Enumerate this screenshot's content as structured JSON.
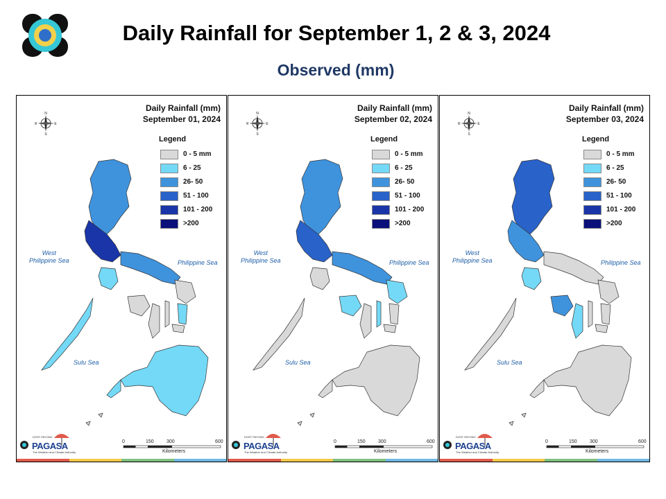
{
  "header": {
    "title": "Daily Rainfall for September 1, 2  & 3, 2024",
    "subtitle": "Observed (mm)"
  },
  "legend": {
    "title": "Legend",
    "classes": [
      {
        "label": "0 - 5 mm",
        "color": "#d9d9d9"
      },
      {
        "label": "6 - 25",
        "color": "#74d9f7"
      },
      {
        "label": "26- 50",
        "color": "#3f93dd"
      },
      {
        "label": "51 - 100",
        "color": "#2962c9"
      },
      {
        "label": "101 - 200",
        "color": "#1a35a8"
      },
      {
        "label": ">200",
        "color": "#0b0f7a"
      }
    ]
  },
  "panels": [
    {
      "title_line1": "Daily Rainfall (mm)",
      "title_line2": "September 01, 2024",
      "palette": [
        1,
        2,
        3,
        4,
        5
      ]
    },
    {
      "title_line1": "Daily Rainfall (mm)",
      "title_line2": "September 02, 2024",
      "palette": [
        1,
        2,
        3,
        4,
        5
      ]
    },
    {
      "title_line1": "Daily Rainfall (mm)",
      "title_line2": "September 03, 2024",
      "palette": [
        0,
        1,
        2,
        3
      ]
    }
  ],
  "seas": {
    "west": "West\nPhilippine Sea",
    "east": "Philippine Sea",
    "sulu": "Sulu Sea"
  },
  "compass": {
    "n": "N",
    "s": "S",
    "e": "E",
    "w": "W"
  },
  "scale": {
    "ticks": [
      "0",
      "150",
      "300",
      "600"
    ],
    "unit": "Kilometers"
  },
  "brand": {
    "name": "PAGASA",
    "small": "DOST PAYONG",
    "tagline": "The Weather and Climate Authority"
  },
  "brand_bar_colors": [
    "#e05a4b",
    "#f3c84a",
    "#7fbf7f",
    "#6fb6e0"
  ]
}
